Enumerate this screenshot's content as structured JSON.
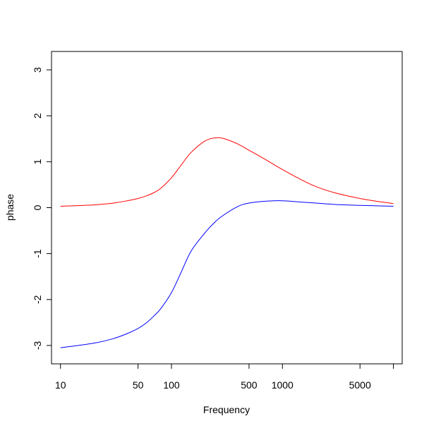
{
  "chart_data": {
    "type": "line",
    "title": "",
    "xlabel": "Frequency",
    "ylabel": "phase",
    "x_scale": "log",
    "xlim": [
      8.3,
      12000
    ],
    "ylim": [
      -3.4,
      3.4
    ],
    "x_ticks": [
      10,
      50,
      100,
      500,
      1000,
      5000,
      10000
    ],
    "x_tick_labels": [
      "10",
      "50",
      "100",
      "500",
      "1000",
      "5000",
      ""
    ],
    "y_ticks": [
      -3,
      -2,
      -1,
      0,
      1,
      2,
      3
    ],
    "y_tick_labels": [
      "-3",
      "-2",
      "-1",
      "0",
      "1",
      "2",
      "3"
    ],
    "grid": false,
    "legend": "none",
    "series": [
      {
        "color": "#ff0000",
        "x": [
          10,
          20,
          30,
          40,
          50,
          60,
          70,
          80,
          100,
          120,
          150,
          200,
          250,
          300,
          400,
          500,
          700,
          1000,
          1500,
          2000,
          3000,
          5000,
          7000,
          10000
        ],
        "y": [
          0.03,
          0.06,
          0.1,
          0.15,
          0.2,
          0.26,
          0.33,
          0.42,
          0.65,
          0.9,
          1.2,
          1.45,
          1.52,
          1.5,
          1.38,
          1.25,
          1.05,
          0.83,
          0.6,
          0.46,
          0.32,
          0.2,
          0.14,
          0.09
        ]
      },
      {
        "color": "#0000ff",
        "x": [
          10,
          20,
          30,
          40,
          50,
          60,
          70,
          80,
          100,
          120,
          150,
          200,
          250,
          300,
          400,
          500,
          700,
          1000,
          1500,
          2000,
          3000,
          5000,
          7000,
          10000
        ],
        "y": [
          -3.05,
          -2.95,
          -2.85,
          -2.74,
          -2.63,
          -2.5,
          -2.35,
          -2.2,
          -1.85,
          -1.45,
          -0.95,
          -0.55,
          -0.3,
          -0.15,
          0.03,
          0.1,
          0.14,
          0.15,
          0.12,
          0.1,
          0.07,
          0.05,
          0.04,
          0.03
        ]
      }
    ]
  }
}
